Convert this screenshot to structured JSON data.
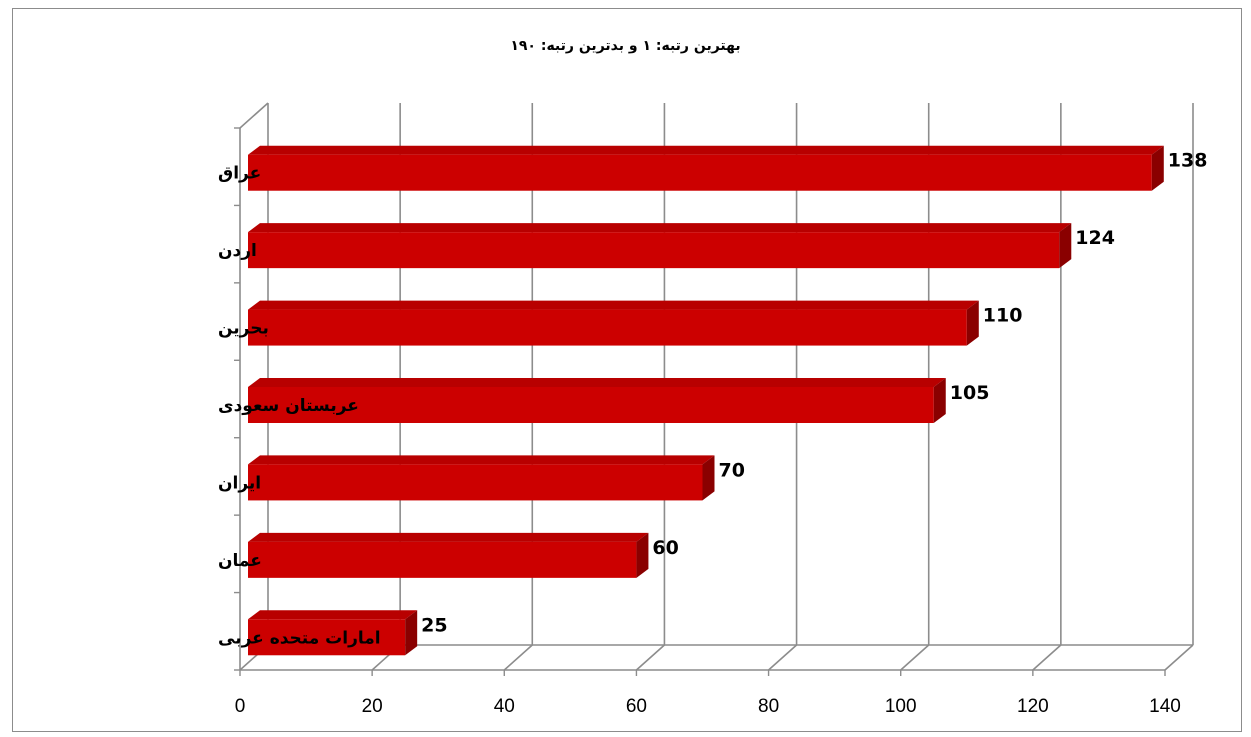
{
  "chart_data": {
    "type": "bar",
    "orientation": "horizontal",
    "title": "بهترین رتبه: ۱ و بدترین رتبه: ۱۹۰",
    "categories": [
      "عراق",
      "اردن",
      "بحرین",
      "عربستان سعودی",
      "ایران",
      "عمان",
      "امارات متحده عربی"
    ],
    "values": [
      138,
      124,
      110,
      105,
      70,
      60,
      25
    ],
    "x_ticks": [
      "0",
      "20",
      "40",
      "60",
      "80",
      "100",
      "120",
      "140"
    ],
    "xlim": [
      0,
      140
    ],
    "xlabel": "",
    "ylabel": "",
    "grid": true,
    "legend": "none",
    "style": "3d",
    "bar_color": "#cc0000",
    "bar_top_color": "#b80000",
    "bar_side_color": "#8a0000",
    "grid_color": "#8c8c8c"
  }
}
